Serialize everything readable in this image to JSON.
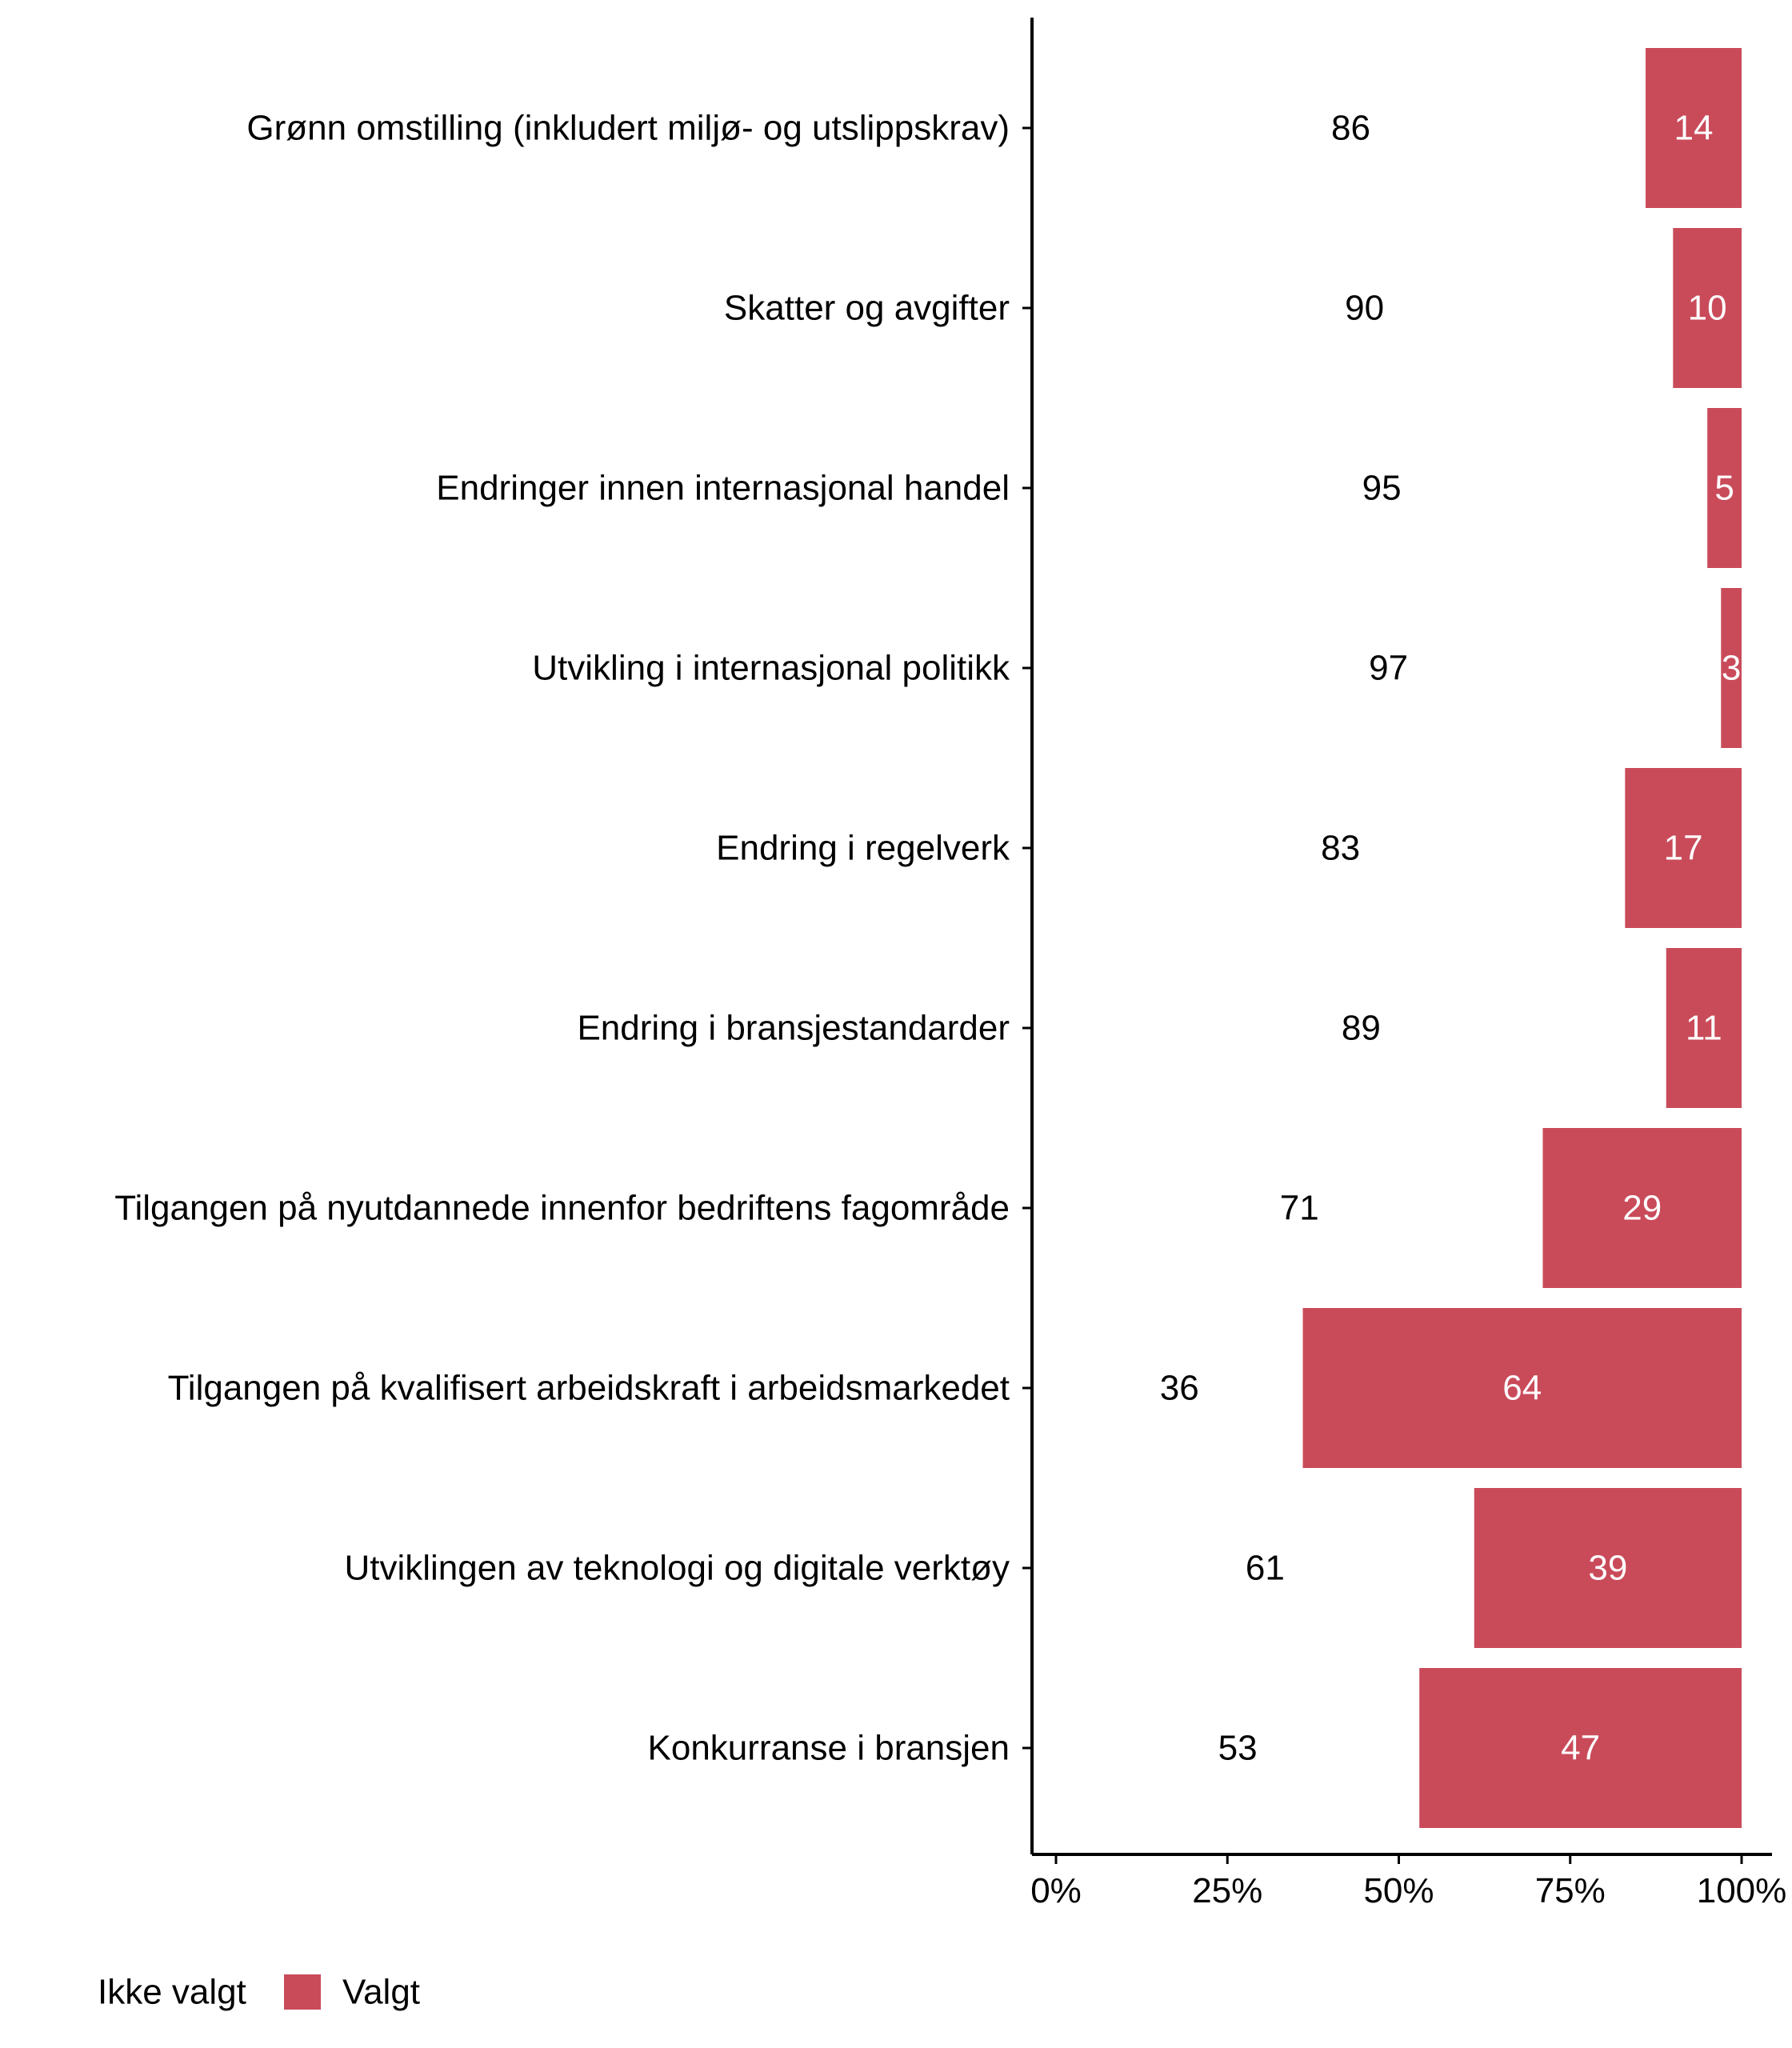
{
  "chart_data": {
    "type": "bar",
    "orientation": "horizontal",
    "stacked": true,
    "categories": [
      "Grønn omstilling (inkludert miljø- og utslippskrav)",
      "Skatter og avgifter",
      "Endringer innen internasjonal handel",
      "Utvikling i internasjonal politikk",
      "Endring i regelverk",
      "Endring i bransjestandarder",
      "Tilgangen på nyutdannede innenfor bedriftens fagområde",
      "Tilgangen på kvalifisert arbeidskraft i arbeidsmarkedet",
      "Utviklingen av teknologi og digitale verktøy",
      "Konkurranse i bransjen"
    ],
    "series": [
      {
        "name": "Ikke valgt",
        "values": [
          86,
          90,
          95,
          97,
          83,
          89,
          71,
          36,
          61,
          53
        ],
        "color": "#ffffff",
        "label_color": "#000000"
      },
      {
        "name": "Valgt",
        "values": [
          14,
          10,
          5,
          3,
          17,
          11,
          29,
          64,
          39,
          47
        ],
        "color": "#c94b5a",
        "label_color": "#ffffff"
      }
    ],
    "xlim": [
      0,
      100
    ],
    "xticks": [
      0,
      25,
      50,
      75,
      100
    ],
    "xtick_labels": [
      "0%",
      "25%",
      "50%",
      "75%",
      "100%"
    ],
    "xlabel": "",
    "ylabel": "",
    "title": "",
    "grid": false,
    "legend_position": "bottom-left",
    "colors": {
      "valgt": "#c94b5a",
      "axis": "#000000",
      "text": "#000000",
      "value_on_bar": "#ffffff"
    }
  }
}
